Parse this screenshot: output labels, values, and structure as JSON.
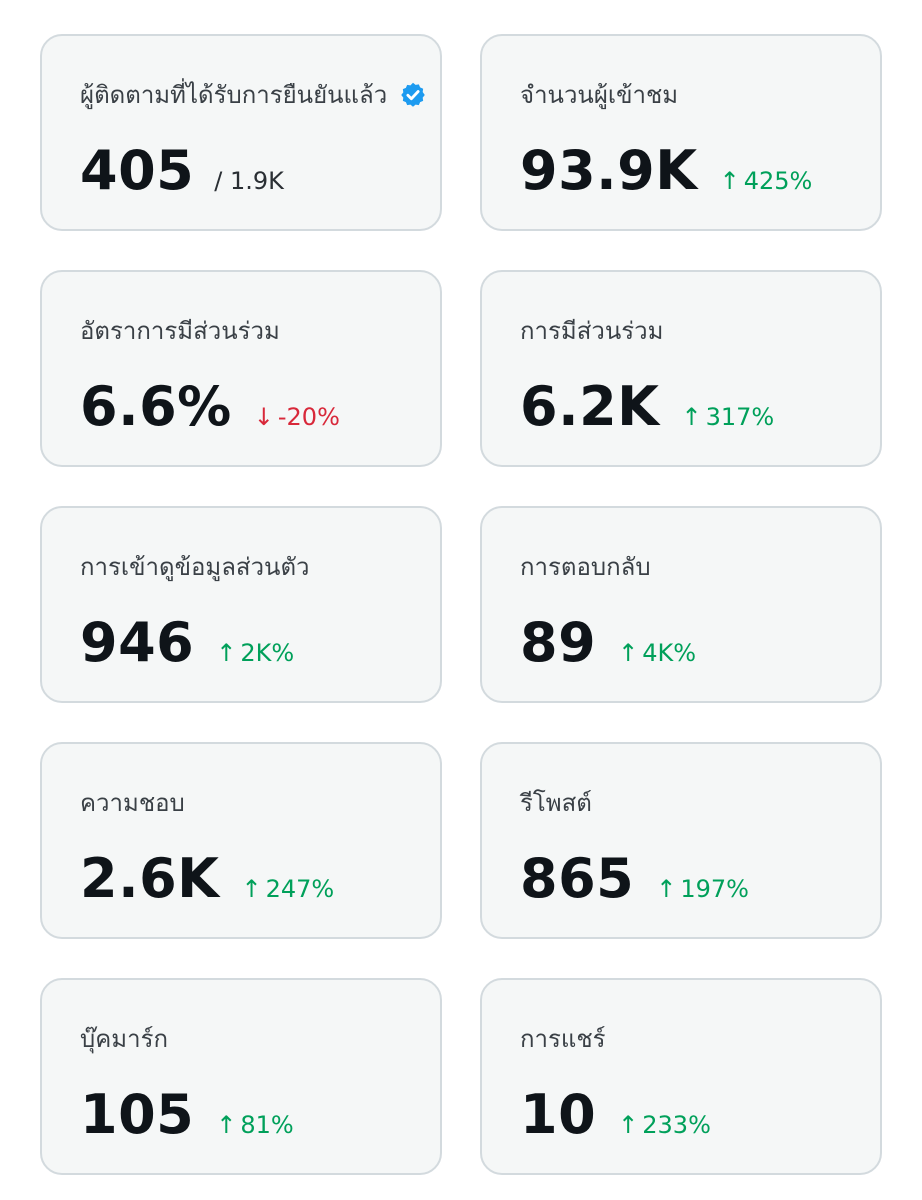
{
  "colors": {
    "up": "#00a05a",
    "down": "#d8283a",
    "verified_badge": "#1d9bf0"
  },
  "cards": [
    {
      "label": "ผู้ติดตามที่ได้รับการยืนยันแล้ว",
      "icon": "verified-badge-icon",
      "value": "405",
      "secondary": "/ 1.9K"
    },
    {
      "label": "จำนวนผู้เข้าชม",
      "value": "93.9K",
      "arrow": "↑",
      "change": "425%",
      "direction": "up"
    },
    {
      "label": "อัตราการมีส่วนร่วม",
      "value": "6.6%",
      "arrow": "↓",
      "change": "-20%",
      "direction": "down"
    },
    {
      "label": "การมีส่วนร่วม",
      "value": "6.2K",
      "arrow": "↑",
      "change": "317%",
      "direction": "up"
    },
    {
      "label": "การเข้าดูข้อมูลส่วนตัว",
      "value": "946",
      "arrow": "↑",
      "change": "2K%",
      "direction": "up"
    },
    {
      "label": "การตอบกลับ",
      "value": "89",
      "arrow": "↑",
      "change": "4K%",
      "direction": "up"
    },
    {
      "label": "ความชอบ",
      "value": "2.6K",
      "arrow": "↑",
      "change": "247%",
      "direction": "up"
    },
    {
      "label": "รีโพสต์",
      "value": "865",
      "arrow": "↑",
      "change": "197%",
      "direction": "up"
    },
    {
      "label": "บุ๊คมาร์ก",
      "value": "105",
      "arrow": "↑",
      "change": "81%",
      "direction": "up"
    },
    {
      "label": "การแชร์",
      "value": "10",
      "arrow": "↑",
      "change": "233%",
      "direction": "up"
    }
  ]
}
